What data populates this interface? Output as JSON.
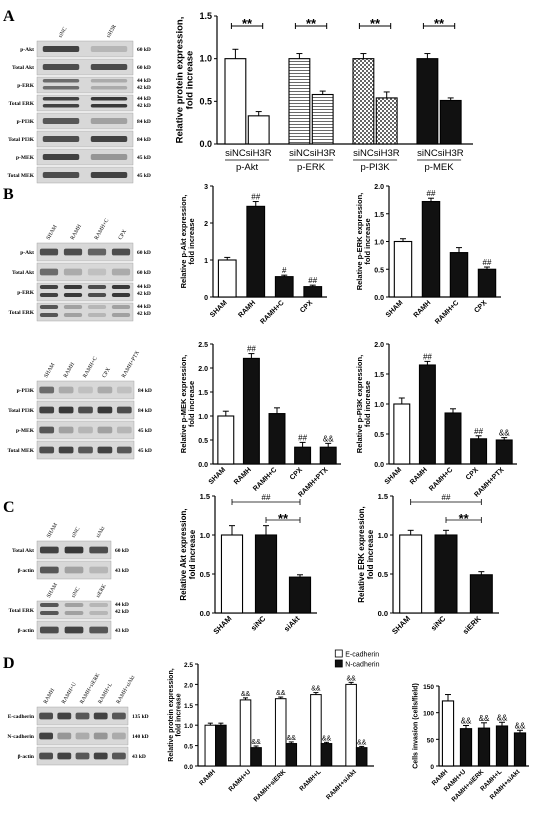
{
  "panels": [
    {
      "letter": "A",
      "blots": [
        {
          "lanes": [
            "siNC",
            "siH3R"
          ],
          "rows": [
            {
              "name": "p-Akt",
              "kd": [
                "60 kD"
              ]
            },
            {
              "name": "Total Akt",
              "kd": [
                "60 kD"
              ]
            },
            {
              "name": "p-ERK",
              "kd": [
                "44 kD",
                "42 kD"
              ]
            },
            {
              "name": "Total ERK",
              "kd": [
                "44 kD",
                "42 kD"
              ]
            },
            {
              "name": "p-PI3K",
              "kd": [
                "84 kD"
              ]
            },
            {
              "name": "Total PI3K",
              "kd": [
                "84 kD"
              ]
            },
            {
              "name": "p-MEK",
              "kd": [
                "45 kD"
              ]
            },
            {
              "name": "Total MEK",
              "kd": [
                "45 kD"
              ]
            }
          ]
        }
      ]
    },
    {
      "letter": "B",
      "blots": [
        {
          "lanes": [
            "SHAM",
            "RAMH",
            "RAMH+C",
            "CPX"
          ],
          "rows": [
            {
              "name": "p-Akt",
              "kd": [
                "60 kD"
              ]
            },
            {
              "name": "Total Akt",
              "kd": [
                "60 kD"
              ]
            },
            {
              "name": "p-ERK",
              "kd": [
                "44 kD",
                "42 kD"
              ]
            },
            {
              "name": "Total ERK",
              "kd": [
                "44 kD",
                "42 kD"
              ]
            }
          ]
        },
        {
          "lanes": [
            "SHAM",
            "RAMH",
            "RAMH+C",
            "CPX",
            "RAMH+PTX"
          ],
          "rows": [
            {
              "name": "p-PI3K",
              "kd": [
                "84 kD"
              ]
            },
            {
              "name": "Total PI3K",
              "kd": [
                "84 kD"
              ]
            },
            {
              "name": "p-MEK",
              "kd": [
                "45 kD"
              ]
            },
            {
              "name": "Total MEK",
              "kd": [
                "45 kD"
              ]
            }
          ]
        }
      ]
    },
    {
      "letter": "C",
      "blots": [
        {
          "lanes": [
            "SHAM",
            "siNC",
            "siAkt"
          ],
          "rows": [
            {
              "name": "Total Akt",
              "kd": [
                "60 kD"
              ]
            },
            {
              "name": "β-actin",
              "kd": [
                "43 kD"
              ]
            }
          ]
        },
        {
          "lanes": [
            "SHAM",
            "siNC",
            "siERK"
          ],
          "rows": [
            {
              "name": "Total ERK",
              "kd": [
                "44 kD",
                "42 kD"
              ]
            },
            {
              "name": "β-actin",
              "kd": [
                "43 kD"
              ]
            }
          ]
        }
      ]
    },
    {
      "letter": "D",
      "blots": [
        {
          "lanes": [
            "RAMH",
            "RAMH+U",
            "RAMH+siERK",
            "RAMH+L",
            "RAMH+siAkt"
          ],
          "rows": [
            {
              "name": "E-cadherin",
              "kd": [
                "135 kD"
              ]
            },
            {
              "name": "N-cadherin",
              "kd": [
                "140 kD"
              ]
            },
            {
              "name": "β-actin",
              "kd": [
                "43 kD"
              ]
            }
          ]
        }
      ]
    }
  ],
  "chart_data": [
    {
      "type": "bar",
      "panel": "A",
      "ylabel": "Relative protein expression, fold increase",
      "ylim": [
        0,
        1.5
      ],
      "yticks": [
        "0.0",
        "0.5",
        "1.0",
        "1.5"
      ],
      "categories": [
        "siNC",
        "siH3R",
        "siNC",
        "siH3R",
        "siNC",
        "siH3R",
        "siNC",
        "siH3R"
      ],
      "groups": [
        "p-Akt",
        "p-ERK",
        "p-PI3K",
        "p-MEK"
      ],
      "values": [
        1.0,
        0.33,
        1.0,
        0.58,
        1.0,
        0.54,
        1.0,
        0.51
      ],
      "errors": [
        0.11,
        0.05,
        0.06,
        0.04,
        0.06,
        0.07,
        0.06,
        0.03
      ],
      "annotations": [
        "**",
        "**",
        "**",
        "**"
      ]
    },
    {
      "type": "bar",
      "panel": "B",
      "ylabel": "Relative p-Akt expression, fold increase",
      "ylim": [
        0,
        3
      ],
      "yticks": [
        "0",
        "1",
        "2",
        "3"
      ],
      "categories": [
        "SHAM",
        "RAMH",
        "RAMH+C",
        "CPX"
      ],
      "values": [
        1.0,
        2.45,
        0.55,
        0.28
      ],
      "errors": [
        0.07,
        0.13,
        0.04,
        0.04
      ],
      "marks": [
        "",
        "##",
        "#",
        "##"
      ]
    },
    {
      "type": "bar",
      "panel": "B",
      "ylabel": "Relative p-ERK expression, fold increase",
      "ylim": [
        0,
        2
      ],
      "yticks": [
        "0.0",
        "0.5",
        "1.0",
        "1.5",
        "2.0"
      ],
      "categories": [
        "SHAM",
        "RAMH",
        "RAMH+C",
        "CPX"
      ],
      "values": [
        1.0,
        1.72,
        0.8,
        0.5
      ],
      "errors": [
        0.05,
        0.06,
        0.09,
        0.04
      ],
      "marks": [
        "",
        "##",
        "",
        "##"
      ]
    },
    {
      "type": "bar",
      "panel": "B",
      "ylabel": "Relative p-MEK expression, fold increase",
      "ylim": [
        0,
        2.5
      ],
      "yticks": [
        "0.0",
        "0.5",
        "1.0",
        "1.5",
        "2.0",
        "2.5"
      ],
      "categories": [
        "SHAM",
        "RAMH",
        "RAMH+C",
        "CPX",
        "RAMH+PTX"
      ],
      "values": [
        1.0,
        2.2,
        1.05,
        0.35,
        0.35
      ],
      "errors": [
        0.1,
        0.1,
        0.12,
        0.1,
        0.08
      ],
      "marks": [
        "",
        "##",
        "",
        "##",
        "&&"
      ]
    },
    {
      "type": "bar",
      "panel": "B",
      "ylabel": "Relative p-PI3K expression, fold increase",
      "ylim": [
        0,
        2
      ],
      "yticks": [
        "0.0",
        "0.5",
        "1.0",
        "1.5",
        "2.0"
      ],
      "categories": [
        "SHAM",
        "RAMH",
        "RAMH+C",
        "CPX",
        "RAMH+PTX"
      ],
      "values": [
        1.0,
        1.65,
        0.85,
        0.42,
        0.4
      ],
      "errors": [
        0.1,
        0.06,
        0.07,
        0.05,
        0.04
      ],
      "marks": [
        "",
        "##",
        "",
        "##",
        "&&"
      ]
    },
    {
      "type": "bar",
      "panel": "C",
      "ylabel": "Relative Akt expression, fold increase",
      "ylim": [
        0,
        1.5
      ],
      "yticks": [
        "0.0",
        "0.5",
        "1.0",
        "1.5"
      ],
      "categories": [
        "SHAM",
        "siNC",
        "siAkt"
      ],
      "values": [
        1.0,
        1.0,
        0.46
      ],
      "errors": [
        0.12,
        0.12,
        0.03
      ],
      "annotations": [
        "##",
        "**"
      ]
    },
    {
      "type": "bar",
      "panel": "C",
      "ylabel": "Relative ERK expression, fold increase",
      "ylim": [
        0,
        1.5
      ],
      "yticks": [
        "0.0",
        "0.5",
        "1.0",
        "1.5"
      ],
      "categories": [
        "SHAM",
        "siNC",
        "siERK"
      ],
      "values": [
        1.0,
        1.0,
        0.49
      ],
      "errors": [
        0.06,
        0.06,
        0.04
      ],
      "annotations": [
        "##",
        "**"
      ]
    },
    {
      "type": "bar",
      "panel": "D",
      "ylabel": "Relative protein expression, fold increase",
      "ylim": [
        0,
        2.5
      ],
      "yticks": [
        "0.0",
        "0.5",
        "1.0",
        "1.5",
        "2.0",
        "2.5"
      ],
      "categories": [
        "RAMH",
        "RAMH+U",
        "RAMH+siERK",
        "RAMH+L",
        "RAMH+siAkt"
      ],
      "series": [
        {
          "name": "E-cadherin",
          "values": [
            1.0,
            1.62,
            1.65,
            1.75,
            2.0
          ],
          "errors": [
            0.05,
            0.05,
            0.04,
            0.05,
            0.05
          ]
        },
        {
          "name": "N-cadherin",
          "values": [
            1.0,
            0.45,
            0.55,
            0.55,
            0.45
          ],
          "errors": [
            0.05,
            0.04,
            0.04,
            0.03,
            0.03
          ]
        }
      ],
      "marks": [
        "&&",
        "&&"
      ],
      "legend": "top-left"
    },
    {
      "type": "bar",
      "panel": "D",
      "ylabel": "Cells invasion (cells/field)",
      "ylim": [
        0,
        150
      ],
      "yticks": [
        "0",
        "50",
        "100",
        "150"
      ],
      "categories": [
        "RAMH",
        "RAMH+U",
        "RAMH+siERK",
        "RAMH+L",
        "RAMH+siAkt"
      ],
      "values": [
        122,
        70,
        71,
        75,
        62
      ],
      "errors": [
        12,
        6,
        10,
        7,
        5
      ],
      "marks": [
        "",
        "&&",
        "&&",
        "&&",
        "&&"
      ]
    }
  ]
}
